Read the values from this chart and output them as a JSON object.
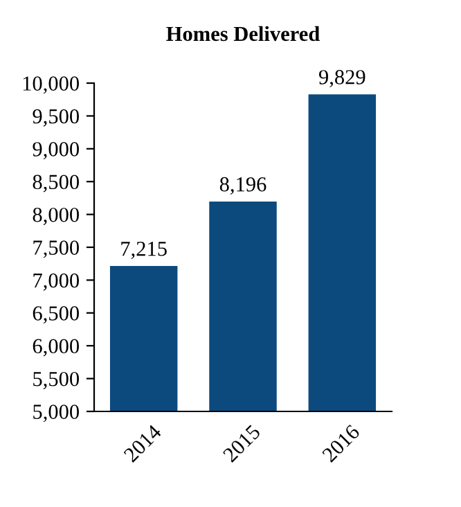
{
  "chart_data": {
    "type": "bar",
    "title": "Homes Delivered",
    "categories": [
      "2014",
      "2015",
      "2016"
    ],
    "values": [
      7215,
      8196,
      9829
    ],
    "color": "#0c4a7e",
    "value_labels": [
      "7,215",
      "8,196",
      "9,829"
    ],
    "ylim": [
      5000,
      10000
    ],
    "yticks": [
      {
        "value": 5000,
        "label": "5,000"
      },
      {
        "value": 5500,
        "label": "5,500"
      },
      {
        "value": 6000,
        "label": "6,000"
      },
      {
        "value": 6500,
        "label": "6,500"
      },
      {
        "value": 7000,
        "label": "7,000"
      },
      {
        "value": 7500,
        "label": "7,500"
      },
      {
        "value": 8000,
        "label": "8,000"
      },
      {
        "value": 8500,
        "label": "8,500"
      },
      {
        "value": 9000,
        "label": "9,000"
      },
      {
        "value": 9500,
        "label": "9,500"
      },
      {
        "value": 10000,
        "label": "10,000"
      }
    ],
    "grid": false,
    "legend": false
  }
}
